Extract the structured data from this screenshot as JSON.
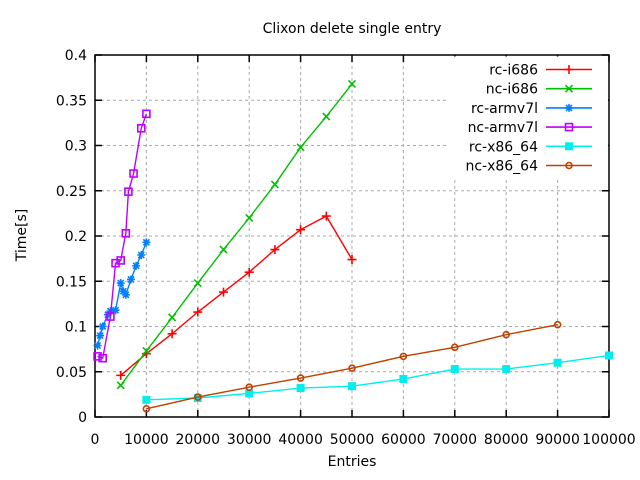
{
  "chart_data": {
    "type": "line",
    "title": "Clixon delete single entry",
    "xlabel": "Entries",
    "ylabel": "Time[s]",
    "xlim": [
      0,
      100000
    ],
    "ylim": [
      0,
      0.4
    ],
    "x_ticks": {
      "values": [
        0,
        10000,
        20000,
        30000,
        40000,
        50000,
        60000,
        70000,
        80000,
        90000,
        100000
      ],
      "labels": [
        "0",
        "10000",
        "20000",
        "30000",
        "40000",
        "50000",
        "60000",
        "70000",
        "80000",
        "90000",
        "100000"
      ]
    },
    "y_ticks": {
      "values": [
        0,
        0.05,
        0.1,
        0.15,
        0.2,
        0.25,
        0.3,
        0.35,
        0.4
      ],
      "labels": [
        "0",
        "0.05",
        "0.1",
        "0.15",
        "0.2",
        "0.25",
        "0.3",
        "0.35",
        "0.4"
      ]
    },
    "grid": true,
    "legend": {
      "position": "top-right-inside",
      "opaque": true
    },
    "colors": {
      "background": "#ffffff",
      "border": "#000000",
      "grid": "#aaaaaa",
      "text": "#000000"
    },
    "series": [
      {
        "name": "rc-i686",
        "color": "#ff0000",
        "marker": "plus",
        "x": [
          5000,
          10000,
          15000,
          20000,
          25000,
          30000,
          35000,
          40000,
          45000,
          50000
        ],
        "y": [
          0.046,
          0.07,
          0.092,
          0.116,
          0.138,
          0.16,
          0.185,
          0.207,
          0.222,
          0.174
        ]
      },
      {
        "name": "nc-i686",
        "color": "#00c000",
        "marker": "cross",
        "x": [
          5000,
          10000,
          15000,
          20000,
          25000,
          30000,
          35000,
          40000,
          45000,
          50000
        ],
        "y": [
          0.035,
          0.073,
          0.11,
          0.148,
          0.185,
          0.22,
          0.257,
          0.298,
          0.332,
          0.368
        ]
      },
      {
        "name": "rc-armv7l",
        "color": "#0080ff",
        "marker": "asterisk",
        "x": [
          500,
          1000,
          1500,
          2500,
          3000,
          4000,
          5000,
          5500,
          6000,
          7000,
          8000,
          9000,
          10000
        ],
        "y": [
          0.079,
          0.09,
          0.1,
          0.113,
          0.117,
          0.118,
          0.148,
          0.139,
          0.135,
          0.152,
          0.167,
          0.179,
          0.193
        ]
      },
      {
        "name": "nc-armv7l",
        "color": "#c000ff",
        "marker": "open-square",
        "x": [
          500,
          1500,
          3000,
          4000,
          5000,
          6000,
          6500,
          7500,
          9000,
          10000
        ],
        "y": [
          0.067,
          0.065,
          0.111,
          0.17,
          0.173,
          0.203,
          0.249,
          0.269,
          0.319,
          0.335
        ]
      },
      {
        "name": "rc-x86_64",
        "color": "#00eeee",
        "marker": "filled-square",
        "x": [
          10000,
          20000,
          30000,
          40000,
          50000,
          60000,
          70000,
          80000,
          90000,
          100000
        ],
        "y": [
          0.019,
          0.021,
          0.026,
          0.032,
          0.034,
          0.042,
          0.053,
          0.053,
          0.06,
          0.068
        ]
      },
      {
        "name": "nc-x86_64",
        "color": "#c04000",
        "marker": "open-circle",
        "x": [
          10000,
          20000,
          30000,
          40000,
          50000,
          60000,
          70000,
          80000,
          90000
        ],
        "y": [
          0.009,
          0.022,
          0.033,
          0.043,
          0.054,
          0.067,
          0.077,
          0.091,
          0.102
        ]
      }
    ]
  }
}
